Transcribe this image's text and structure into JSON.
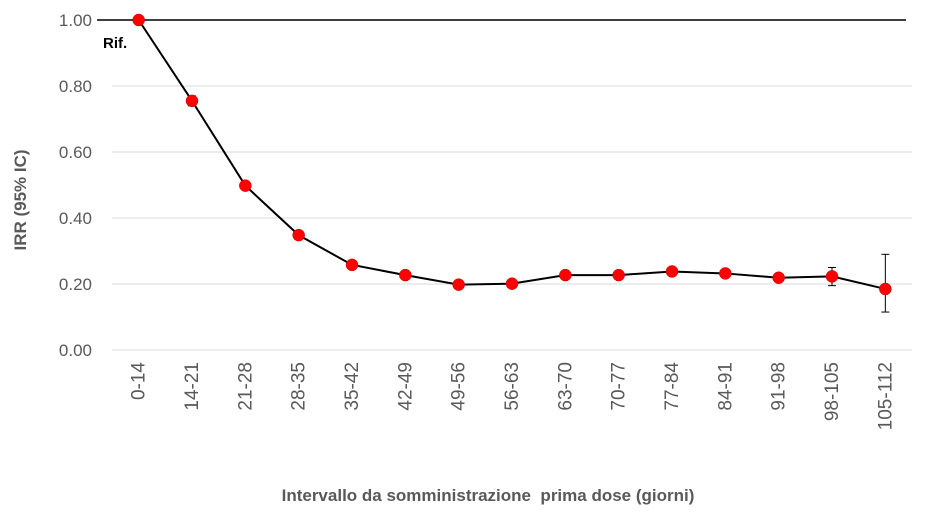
{
  "chart_data": {
    "type": "line",
    "title": "",
    "xlabel": "Intervallo da somministrazione  prima dose (giorni)",
    "ylabel": "IRR (95% IC)",
    "ylim": [
      0,
      1
    ],
    "yticks": [
      "0.00",
      "0.20",
      "0.40",
      "0.60",
      "0.80",
      "1.00"
    ],
    "categories": [
      "0-14",
      "14-21",
      "21-28",
      "28-35",
      "35-42",
      "42-49",
      "49-56",
      "56-63",
      "63-70",
      "70-77",
      "77-84",
      "84-91",
      "91-98",
      "98-105",
      "105-112"
    ],
    "series": [
      {
        "values": [
          1.0,
          0.755,
          0.498,
          0.348,
          0.258,
          0.227,
          0.198,
          0.201,
          0.227,
          0.227,
          0.238,
          0.232,
          0.219,
          0.223,
          0.185
        ],
        "ci_lower": [
          1.0,
          0.74,
          0.49,
          0.34,
          0.25,
          0.22,
          0.19,
          0.195,
          0.22,
          0.22,
          0.23,
          0.225,
          0.21,
          0.195,
          0.115
        ],
        "ci_upper": [
          1.0,
          0.77,
          0.505,
          0.355,
          0.265,
          0.235,
          0.205,
          0.207,
          0.235,
          0.235,
          0.245,
          0.24,
          0.228,
          0.25,
          0.29
        ]
      }
    ],
    "reference_line": 1.0,
    "annotation": "Rif.",
    "grid": true,
    "legend": "none",
    "colors": {
      "marker": "#ff0000",
      "line": "#000000",
      "grid": "#d9d9d9",
      "text": "#595959"
    }
  }
}
